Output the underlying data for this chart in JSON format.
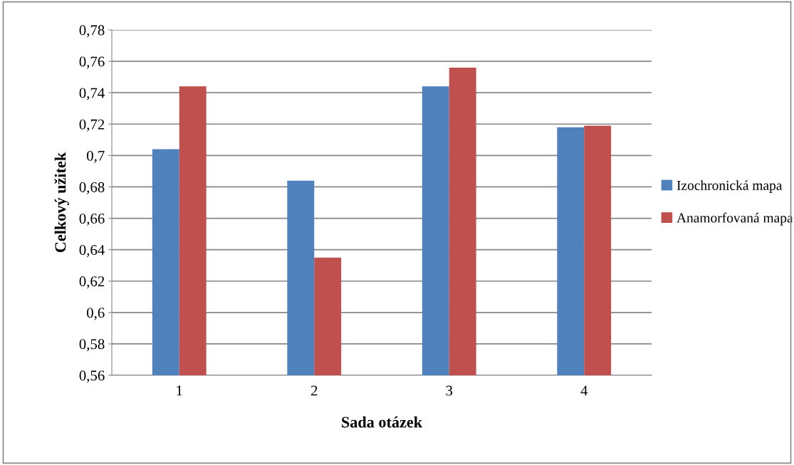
{
  "chart_data": {
    "type": "bar",
    "xlabel": "Sada otázek",
    "ylabel": "Celkový užitek",
    "categories": [
      "1",
      "2",
      "3",
      "4"
    ],
    "series": [
      {
        "name": "Izochronická mapa",
        "color": "#4f81bd",
        "values": [
          0.704,
          0.684,
          0.744,
          0.718
        ]
      },
      {
        "name": "Anamorfovaná mapa",
        "color": "#c0504d",
        "values": [
          0.744,
          0.635,
          0.756,
          0.719
        ]
      }
    ],
    "ylim": [
      0.56,
      0.78
    ],
    "yticks": [
      {
        "value": 0.56,
        "label": "0,56"
      },
      {
        "value": 0.58,
        "label": "0,58"
      },
      {
        "value": 0.6,
        "label": "0,6"
      },
      {
        "value": 0.62,
        "label": "0,62"
      },
      {
        "value": 0.64,
        "label": "0,64"
      },
      {
        "value": 0.66,
        "label": "0,66"
      },
      {
        "value": 0.68,
        "label": "0,68"
      },
      {
        "value": 0.7,
        "label": "0,7"
      },
      {
        "value": 0.72,
        "label": "0,72"
      },
      {
        "value": 0.74,
        "label": "0,74"
      },
      {
        "value": 0.76,
        "label": "0,76"
      },
      {
        "value": 0.78,
        "label": "0,78"
      }
    ],
    "grid": "y",
    "legend": "right"
  }
}
